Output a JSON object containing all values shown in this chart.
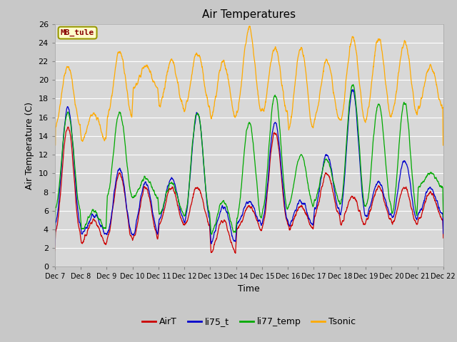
{
  "title": "Air Temperatures",
  "xlabel": "Time",
  "ylabel": "Air Temperature (C)",
  "site_label": "MB_tule",
  "ylim": [
    0,
    26
  ],
  "yticks": [
    0,
    2,
    4,
    6,
    8,
    10,
    12,
    14,
    16,
    18,
    20,
    22,
    24,
    26
  ],
  "xtick_labels": [
    "Dec 7",
    "Dec 8",
    "Dec 9",
    "Dec 10",
    "Dec 11",
    "Dec 12",
    "Dec 13",
    "Dec 14",
    "Dec 15",
    "Dec 16",
    "Dec 17",
    "Dec 18",
    "Dec 19",
    "Dec 20",
    "Dec 21",
    "Dec 22"
  ],
  "colors": {
    "AirT": "#cc0000",
    "li75_t": "#0000cc",
    "li77_temp": "#00aa00",
    "Tsonic": "#ffaa00"
  },
  "fig_bg": "#c8c8c8",
  "plot_bg": "#d8d8d8",
  "grid_color": "#ffffff",
  "legend_entries": [
    "AirT",
    "li75_t",
    "li77_temp",
    "Tsonic"
  ]
}
